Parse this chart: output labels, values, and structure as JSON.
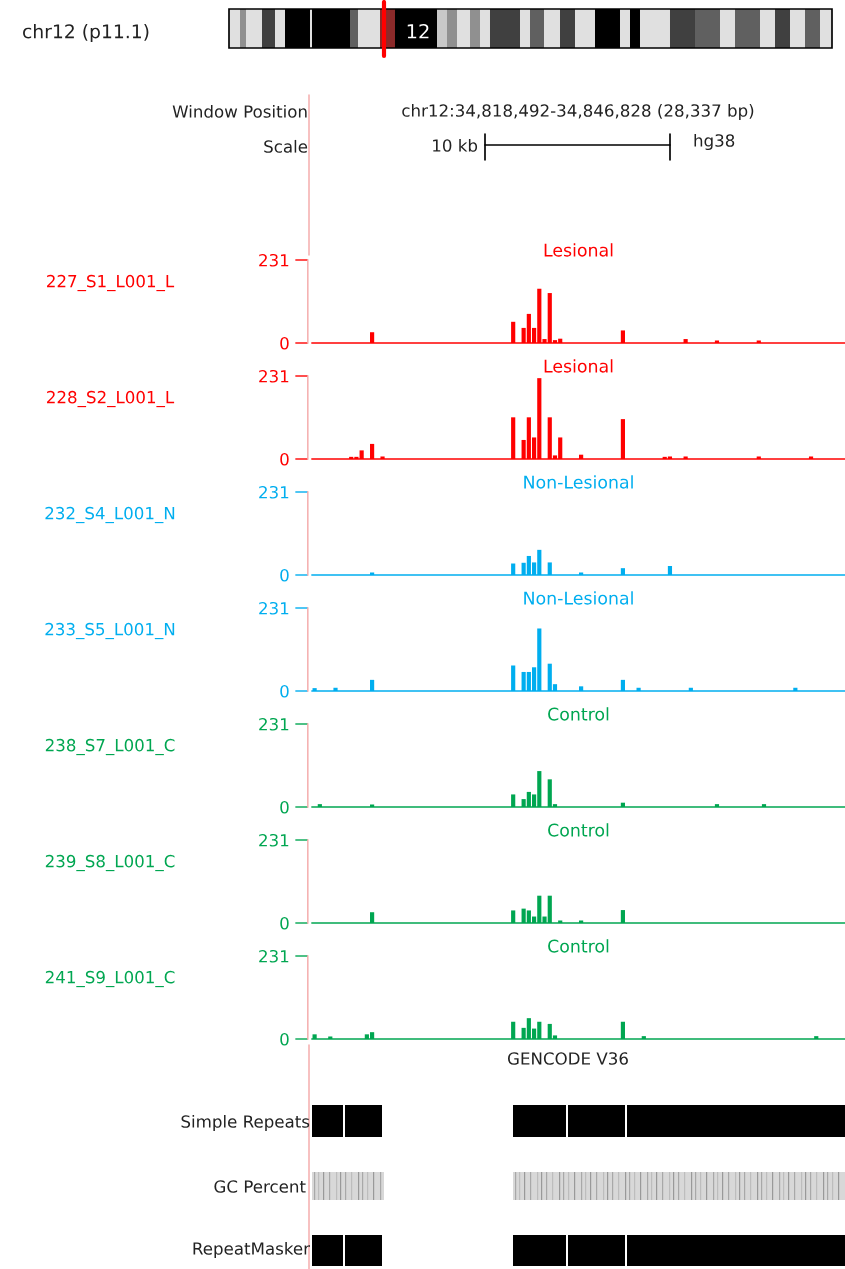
{
  "chart_data": [
    {
      "type": "other",
      "annotations": [
        "chr12 (p11.1)",
        "12",
        "Window Position",
        "Scale",
        "chr12:34,818,492-34,846,828 (28,337 bp)",
        "10 kb",
        "hg38"
      ]
    },
    {
      "type": "bar",
      "title": "Lesional",
      "ylabel": "227_S1_L001_L",
      "color": "#ff0000",
      "ylim": [
        0,
        231
      ],
      "yticks": [
        0,
        231
      ],
      "tick_labels": "y",
      "categories": [
        null,
        null,
        null,
        null,
        null,
        null,
        null,
        null,
        null,
        null,
        null,
        null,
        null,
        null,
        null,
        null,
        null,
        null,
        null,
        null,
        null,
        null,
        null,
        null,
        null,
        null,
        null,
        null,
        null,
        null,
        null,
        null,
        null,
        null,
        null,
        null,
        null,
        null,
        null,
        null,
        null,
        null,
        null,
        null,
        null,
        null,
        null,
        null,
        null,
        null,
        null,
        null,
        null,
        null,
        null,
        null,
        null,
        null,
        null,
        null,
        null,
        null,
        null,
        null,
        null,
        null,
        null,
        null,
        null,
        null,
        null,
        null,
        null,
        null,
        null,
        null,
        null,
        null,
        null,
        null,
        null,
        null,
        null,
        null,
        null,
        null,
        null,
        null,
        null,
        null,
        null,
        null,
        null,
        null,
        null,
        null,
        null,
        null,
        null,
        null,
        null,
        null
      ],
      "values": [
        0,
        0,
        0,
        0,
        0,
        0,
        0,
        0,
        0,
        0,
        0,
        30,
        0,
        0,
        0,
        0,
        0,
        0,
        0,
        0,
        0,
        0,
        0,
        0,
        0,
        0,
        0,
        0,
        0,
        0,
        0,
        0,
        0,
        0,
        0,
        0,
        0,
        0,
        59,
        0,
        42,
        81,
        42,
        151,
        11,
        139,
        8,
        12,
        0,
        0,
        0,
        0,
        0,
        0,
        0,
        0,
        0,
        0,
        0,
        35,
        0,
        0,
        0,
        0,
        0,
        0,
        0,
        0,
        0,
        0,
        0,
        11,
        0,
        0,
        0,
        0,
        0,
        7,
        0,
        0,
        0,
        0,
        0,
        0,
        0,
        7,
        0,
        0,
        0,
        0,
        0,
        0,
        0,
        0,
        0,
        0,
        0,
        0,
        0,
        0,
        0,
        0
      ]
    },
    {
      "type": "bar",
      "title": "Lesional",
      "ylabel": "228_S2_L001_L",
      "color": "#ff0000",
      "ylim": [
        0,
        231
      ],
      "yticks": [
        0,
        231
      ],
      "tick_labels": "y",
      "categories": [
        null,
        null,
        null,
        null,
        null,
        null,
        null,
        null,
        null,
        null,
        null,
        null,
        null,
        null,
        null,
        null,
        null,
        null,
        null,
        null,
        null,
        null,
        null,
        null,
        null,
        null,
        null,
        null,
        null,
        null,
        null,
        null,
        null,
        null,
        null,
        null,
        null,
        null,
        null,
        null,
        null,
        null,
        null,
        null,
        null,
        null,
        null,
        null,
        null,
        null,
        null,
        null,
        null,
        null,
        null,
        null,
        null,
        null,
        null,
        null,
        null,
        null,
        null,
        null,
        null,
        null,
        null,
        null,
        null,
        null,
        null,
        null,
        null,
        null,
        null,
        null,
        null,
        null,
        null,
        null,
        null,
        null,
        null,
        null,
        null,
        null,
        null,
        null,
        null,
        null,
        null,
        null,
        null,
        null,
        null,
        null,
        null,
        null,
        null,
        null,
        null,
        null
      ],
      "values": [
        0,
        0,
        0,
        0,
        0,
        0,
        0,
        6,
        6,
        24,
        0,
        42,
        0,
        7,
        0,
        0,
        0,
        0,
        0,
        0,
        0,
        0,
        0,
        0,
        0,
        0,
        0,
        0,
        0,
        0,
        0,
        0,
        0,
        0,
        0,
        0,
        0,
        0,
        116,
        0,
        53,
        116,
        60,
        225,
        0,
        116,
        10,
        60,
        0,
        0,
        0,
        12,
        0,
        0,
        0,
        0,
        0,
        0,
        0,
        111,
        0,
        0,
        0,
        0,
        0,
        0,
        0,
        6,
        7,
        0,
        0,
        7,
        0,
        0,
        0,
        0,
        0,
        0,
        0,
        0,
        0,
        0,
        0,
        0,
        0,
        7,
        0,
        0,
        0,
        0,
        0,
        0,
        0,
        0,
        0,
        7,
        0,
        0,
        0,
        0,
        0,
        0
      ]
    },
    {
      "type": "bar",
      "title": "Non-Lesional",
      "ylabel": "232_S4_L001_N",
      "color": "#00aeef",
      "ylim": [
        0,
        231
      ],
      "yticks": [
        0,
        231
      ],
      "tick_labels": "y",
      "categories": [
        null,
        null,
        null,
        null,
        null,
        null,
        null,
        null,
        null,
        null,
        null,
        null,
        null,
        null,
        null,
        null,
        null,
        null,
        null,
        null,
        null,
        null,
        null,
        null,
        null,
        null,
        null,
        null,
        null,
        null,
        null,
        null,
        null,
        null,
        null,
        null,
        null,
        null,
        null,
        null,
        null,
        null,
        null,
        null,
        null,
        null,
        null,
        null,
        null,
        null,
        null,
        null,
        null,
        null,
        null,
        null,
        null,
        null,
        null,
        null,
        null,
        null,
        null,
        null,
        null,
        null,
        null,
        null,
        null,
        null,
        null,
        null,
        null,
        null,
        null,
        null,
        null,
        null,
        null,
        null,
        null,
        null,
        null,
        null,
        null,
        null,
        null,
        null,
        null,
        null,
        null,
        null,
        null,
        null,
        null,
        null,
        null,
        null,
        null,
        null,
        null,
        null
      ],
      "values": [
        0,
        0,
        0,
        0,
        0,
        0,
        0,
        0,
        0,
        0,
        0,
        7,
        0,
        0,
        0,
        0,
        0,
        0,
        0,
        0,
        0,
        0,
        0,
        0,
        0,
        0,
        0,
        0,
        0,
        0,
        0,
        0,
        0,
        0,
        0,
        0,
        0,
        0,
        32,
        0,
        34,
        53,
        35,
        70,
        0,
        35,
        0,
        0,
        0,
        0,
        0,
        7,
        0,
        0,
        0,
        0,
        0,
        0,
        0,
        19,
        0,
        0,
        0,
        0,
        0,
        0,
        0,
        0,
        25,
        0,
        0,
        0,
        0,
        0,
        0,
        0,
        0,
        0,
        0,
        0,
        0,
        0,
        0,
        0,
        0,
        0,
        0,
        0,
        0,
        0,
        0,
        0,
        0,
        0,
        0,
        0,
        0,
        0,
        0,
        0,
        0,
        0
      ]
    },
    {
      "type": "bar",
      "title": "Non-Lesional",
      "ylabel": "233_S5_L001_N",
      "color": "#00aeef",
      "ylim": [
        0,
        231
      ],
      "yticks": [
        0,
        231
      ],
      "tick_labels": "y",
      "categories": [
        null,
        null,
        null,
        null,
        null,
        null,
        null,
        null,
        null,
        null,
        null,
        null,
        null,
        null,
        null,
        null,
        null,
        null,
        null,
        null,
        null,
        null,
        null,
        null,
        null,
        null,
        null,
        null,
        null,
        null,
        null,
        null,
        null,
        null,
        null,
        null,
        null,
        null,
        null,
        null,
        null,
        null,
        null,
        null,
        null,
        null,
        null,
        null,
        null,
        null,
        null,
        null,
        null,
        null,
        null,
        null,
        null,
        null,
        null,
        null,
        null,
        null,
        null,
        null,
        null,
        null,
        null,
        null,
        null,
        null,
        null,
        null,
        null,
        null,
        null,
        null,
        null,
        null,
        null,
        null,
        null,
        null,
        null,
        null,
        null,
        null,
        null,
        null,
        null,
        null,
        null,
        null,
        null,
        null,
        null,
        null,
        null,
        null,
        null,
        null,
        null,
        null
      ],
      "values": [
        8,
        0,
        0,
        0,
        9,
        0,
        0,
        0,
        0,
        0,
        0,
        31,
        0,
        0,
        0,
        0,
        0,
        0,
        0,
        0,
        0,
        0,
        0,
        0,
        0,
        0,
        0,
        0,
        0,
        0,
        0,
        0,
        0,
        0,
        0,
        0,
        0,
        0,
        71,
        0,
        53,
        53,
        66,
        174,
        0,
        76,
        19,
        0,
        0,
        0,
        0,
        13,
        0,
        0,
        0,
        0,
        0,
        0,
        0,
        31,
        0,
        0,
        9,
        0,
        0,
        0,
        0,
        0,
        0,
        0,
        0,
        0,
        9,
        0,
        0,
        0,
        0,
        0,
        0,
        0,
        0,
        0,
        0,
        0,
        0,
        0,
        0,
        0,
        0,
        0,
        0,
        0,
        9,
        0,
        0,
        0,
        0,
        0,
        0,
        0,
        0,
        0
      ]
    },
    {
      "type": "bar",
      "title": "Control",
      "ylabel": "238_S7_L001_C",
      "color": "#00a651",
      "ylim": [
        0,
        231
      ],
      "yticks": [
        0,
        231
      ],
      "tick_labels": "y",
      "categories": [
        null,
        null,
        null,
        null,
        null,
        null,
        null,
        null,
        null,
        null,
        null,
        null,
        null,
        null,
        null,
        null,
        null,
        null,
        null,
        null,
        null,
        null,
        null,
        null,
        null,
        null,
        null,
        null,
        null,
        null,
        null,
        null,
        null,
        null,
        null,
        null,
        null,
        null,
        null,
        null,
        null,
        null,
        null,
        null,
        null,
        null,
        null,
        null,
        null,
        null,
        null,
        null,
        null,
        null,
        null,
        null,
        null,
        null,
        null,
        null,
        null,
        null,
        null,
        null,
        null,
        null,
        null,
        null,
        null,
        null,
        null,
        null,
        null,
        null,
        null,
        null,
        null,
        null,
        null,
        null,
        null,
        null,
        null,
        null,
        null,
        null,
        null,
        null,
        null,
        null,
        null,
        null,
        null,
        null,
        null,
        null,
        null,
        null,
        null,
        null,
        null,
        null
      ],
      "values": [
        0,
        8,
        0,
        0,
        0,
        0,
        0,
        0,
        0,
        0,
        0,
        7,
        0,
        0,
        0,
        0,
        0,
        0,
        0,
        0,
        0,
        0,
        0,
        0,
        0,
        0,
        0,
        0,
        0,
        0,
        0,
        0,
        0,
        0,
        0,
        0,
        0,
        0,
        35,
        0,
        22,
        42,
        35,
        100,
        0,
        77,
        8,
        0,
        0,
        0,
        0,
        0,
        0,
        0,
        0,
        0,
        0,
        0,
        0,
        12,
        0,
        0,
        0,
        0,
        0,
        0,
        0,
        0,
        0,
        0,
        0,
        0,
        0,
        0,
        0,
        0,
        0,
        8,
        0,
        0,
        0,
        0,
        0,
        0,
        0,
        0,
        8,
        0,
        0,
        0,
        0,
        0,
        0,
        0,
        0,
        0,
        0,
        0,
        0,
        0,
        0,
        0
      ]
    },
    {
      "type": "bar",
      "title": "Control",
      "ylabel": "239_S8_L001_C",
      "color": "#00a651",
      "ylim": [
        0,
        231
      ],
      "yticks": [
        0,
        231
      ],
      "tick_labels": "y",
      "categories": [
        null,
        null,
        null,
        null,
        null,
        null,
        null,
        null,
        null,
        null,
        null,
        null,
        null,
        null,
        null,
        null,
        null,
        null,
        null,
        null,
        null,
        null,
        null,
        null,
        null,
        null,
        null,
        null,
        null,
        null,
        null,
        null,
        null,
        null,
        null,
        null,
        null,
        null,
        null,
        null,
        null,
        null,
        null,
        null,
        null,
        null,
        null,
        null,
        null,
        null,
        null,
        null,
        null,
        null,
        null,
        null,
        null,
        null,
        null,
        null,
        null,
        null,
        null,
        null,
        null,
        null,
        null,
        null,
        null,
        null,
        null,
        null,
        null,
        null,
        null,
        null,
        null,
        null,
        null,
        null,
        null,
        null,
        null,
        null,
        null,
        null,
        null,
        null,
        null,
        null,
        null,
        null,
        null,
        null,
        null,
        null,
        null,
        null,
        null,
        null,
        null,
        null
      ],
      "values": [
        0,
        0,
        0,
        0,
        0,
        0,
        0,
        0,
        0,
        0,
        0,
        30,
        0,
        0,
        0,
        0,
        0,
        0,
        0,
        0,
        0,
        0,
        0,
        0,
        0,
        0,
        0,
        0,
        0,
        0,
        0,
        0,
        0,
        0,
        0,
        0,
        0,
        0,
        35,
        0,
        40,
        35,
        18,
        76,
        18,
        76,
        0,
        7,
        0,
        0,
        0,
        7,
        0,
        0,
        0,
        0,
        0,
        0,
        0,
        36,
        0,
        0,
        0,
        0,
        0,
        0,
        0,
        0,
        0,
        0,
        0,
        0,
        0,
        0,
        0,
        0,
        0,
        0,
        0,
        0,
        0,
        0,
        0,
        0,
        0,
        0,
        0,
        0,
        0,
        0,
        0,
        0,
        0,
        0,
        0,
        0,
        0,
        0,
        0,
        0,
        0,
        0
      ]
    },
    {
      "type": "bar",
      "title": "Control",
      "ylabel": "241_S9_L001_C",
      "color": "#00a651",
      "ylim": [
        0,
        231
      ],
      "yticks": [
        0,
        231
      ],
      "tick_labels": "y",
      "categories": [
        null,
        null,
        null,
        null,
        null,
        null,
        null,
        null,
        null,
        null,
        null,
        null,
        null,
        null,
        null,
        null,
        null,
        null,
        null,
        null,
        null,
        null,
        null,
        null,
        null,
        null,
        null,
        null,
        null,
        null,
        null,
        null,
        null,
        null,
        null,
        null,
        null,
        null,
        null,
        null,
        null,
        null,
        null,
        null,
        null,
        null,
        null,
        null,
        null,
        null,
        null,
        null,
        null,
        null,
        null,
        null,
        null,
        null,
        null,
        null,
        null,
        null,
        null,
        null,
        null,
        null,
        null,
        null,
        null,
        null,
        null,
        null,
        null,
        null,
        null,
        null,
        null,
        null,
        null,
        null,
        null,
        null,
        null,
        null,
        null,
        null,
        null,
        null,
        null,
        null,
        null,
        null,
        null,
        null,
        null,
        null,
        null,
        null,
        null,
        null,
        null,
        null
      ],
      "values": [
        13,
        0,
        0,
        7,
        0,
        0,
        0,
        0,
        0,
        0,
        13,
        19,
        0,
        0,
        0,
        0,
        0,
        0,
        0,
        0,
        0,
        0,
        0,
        0,
        0,
        0,
        0,
        0,
        0,
        0,
        0,
        0,
        0,
        0,
        0,
        0,
        0,
        0,
        48,
        0,
        31,
        58,
        29,
        48,
        0,
        42,
        10,
        0,
        0,
        0,
        0,
        0,
        0,
        0,
        0,
        0,
        0,
        0,
        0,
        48,
        0,
        0,
        0,
        8,
        0,
        0,
        0,
        0,
        0,
        0,
        0,
        0,
        0,
        0,
        0,
        0,
        0,
        0,
        0,
        0,
        0,
        0,
        0,
        0,
        0,
        0,
        0,
        0,
        0,
        0,
        0,
        0,
        0,
        0,
        0,
        0,
        8,
        0,
        0,
        0,
        0,
        0
      ]
    },
    {
      "type": "other",
      "annotations": [
        "GENCODE V36",
        "Simple Repeats",
        "GC Percent",
        "RepeatMasker"
      ]
    }
  ]
}
